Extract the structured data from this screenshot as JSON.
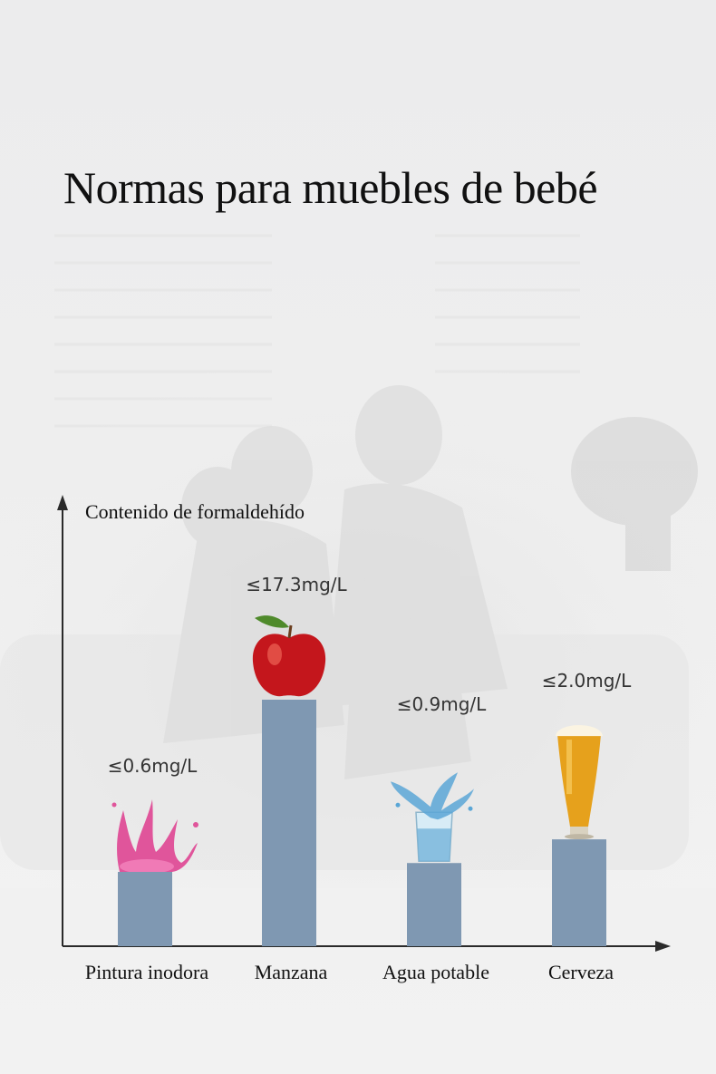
{
  "title": "Normas para muebles de bebé",
  "chart_data": {
    "type": "bar",
    "title": "",
    "ylabel": "Contenido de formaldehído",
    "xlabel": "",
    "unit": "mg/L",
    "categories": [
      "Pintura inodora",
      "Manzana",
      "Agua potable",
      "Cerveza"
    ],
    "values": [
      0.6,
      17.3,
      0.9,
      2.0
    ],
    "value_labels": [
      "≤0.6mg/L",
      "≤17.3mg/L",
      "≤0.9mg/L",
      "≤2.0mg/L"
    ],
    "icons": [
      "paint-splash-icon",
      "apple-icon",
      "water-glass-icon",
      "beer-glass-icon"
    ],
    "bar_color": "#7f98b2",
    "axis_color": "#2a2a2a",
    "grid": false,
    "legend": "none"
  }
}
